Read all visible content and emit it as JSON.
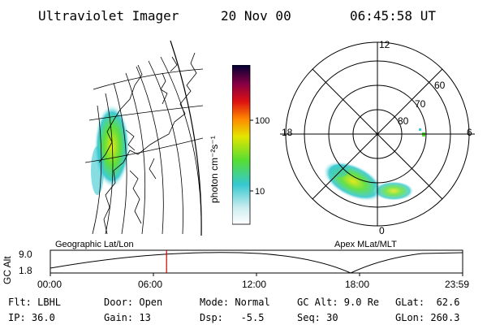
{
  "header": {
    "instrument": "Ultraviolet Imager",
    "date": "20 Nov 00",
    "time": "06:45:58 UT"
  },
  "colorbar": {
    "unit_label": "photon cm⁻²s⁻¹",
    "tick_labels": [
      "100",
      "10"
    ]
  },
  "polar_plot": {
    "mlt_labels": [
      "12",
      "18",
      "6",
      "0"
    ],
    "lat_labels": [
      "60",
      "70",
      "80"
    ]
  },
  "timeline": {
    "left_label": "Geographic Lat/Lon",
    "right_label": "Apex MLat/MLT",
    "axis_title": "GC Alt",
    "y_labels": [
      "9.0",
      "1.8"
    ],
    "x_labels": [
      "00:00",
      "06:00",
      "12:00",
      "18:00",
      "23:59"
    ],
    "current_time_fraction": 0.2819
  },
  "info": {
    "filter": "Flt: LBHL",
    "ip": "IP: 36.0",
    "door": "Door: Open",
    "gain": "Gain: 13",
    "mode": "Mode: Normal",
    "dsp": "Dsp:   -5.5",
    "gc_alt": "GC Alt: 9.0 Re",
    "seq": "Seq: 30",
    "glat": "GLat:  62.6",
    "glon": "GLon: 260.3"
  },
  "colors": {
    "marker": "#cc0000",
    "auroral_bright": "#e3e600",
    "auroral_mid": "#55dd33",
    "auroral_low": "#35c8d0"
  }
}
